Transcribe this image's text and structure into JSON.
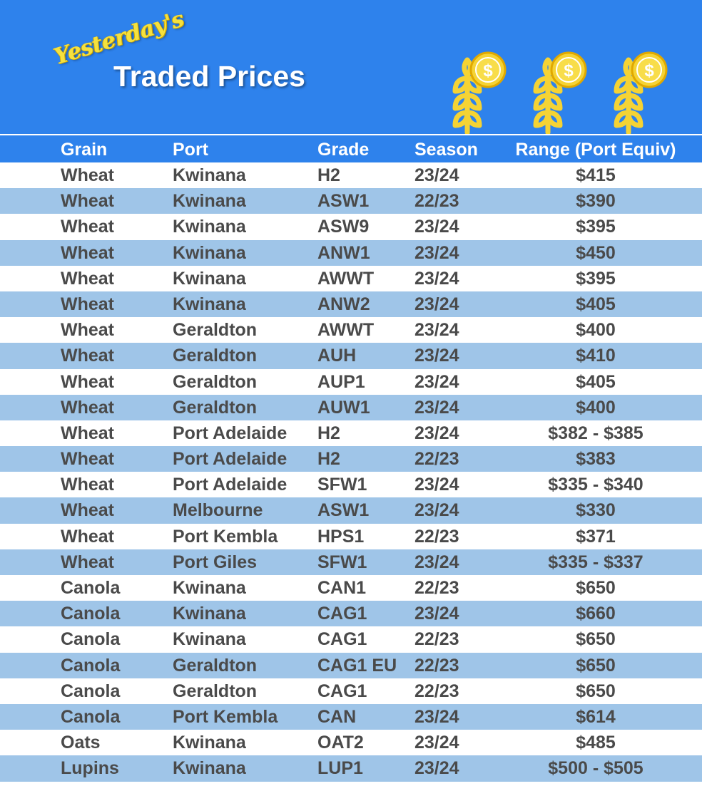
{
  "header": {
    "script_title": "Yesterday's",
    "title": "Traded Prices",
    "icons": [
      "wheat-coin-icon",
      "wheat-coin-icon",
      "wheat-coin-icon"
    ]
  },
  "colors": {
    "banner": "#2e82ec",
    "alt_row": "#9fc5e8",
    "text": "#4a4a4a",
    "accent_yellow": "#f5d334"
  },
  "table": {
    "columns": [
      "Grain",
      "Port",
      "Grade",
      "Season",
      "Range (Port Equiv)"
    ],
    "rows": [
      {
        "grain": "Wheat",
        "port": "Kwinana",
        "grade": "H2",
        "season": "23/24",
        "range": "$415"
      },
      {
        "grain": "Wheat",
        "port": "Kwinana",
        "grade": "ASW1",
        "season": "22/23",
        "range": "$390"
      },
      {
        "grain": "Wheat",
        "port": "Kwinana",
        "grade": "ASW9",
        "season": "23/24",
        "range": "$395"
      },
      {
        "grain": "Wheat",
        "port": "Kwinana",
        "grade": "ANW1",
        "season": "23/24",
        "range": "$450"
      },
      {
        "grain": "Wheat",
        "port": "Kwinana",
        "grade": "AWWT",
        "season": "23/24",
        "range": "$395"
      },
      {
        "grain": "Wheat",
        "port": "Kwinana",
        "grade": "ANW2",
        "season": "23/24",
        "range": "$405"
      },
      {
        "grain": "Wheat",
        "port": "Geraldton",
        "grade": "AWWT",
        "season": "23/24",
        "range": "$400"
      },
      {
        "grain": "Wheat",
        "port": "Geraldton",
        "grade": "AUH",
        "season": "23/24",
        "range": "$410"
      },
      {
        "grain": "Wheat",
        "port": "Geraldton",
        "grade": "AUP1",
        "season": "23/24",
        "range": "$405"
      },
      {
        "grain": "Wheat",
        "port": "Geraldton",
        "grade": "AUW1",
        "season": "23/24",
        "range": "$400"
      },
      {
        "grain": "Wheat",
        "port": "Port Adelaide",
        "grade": "H2",
        "season": "23/24",
        "range": "$382 - $385"
      },
      {
        "grain": "Wheat",
        "port": "Port Adelaide",
        "grade": "H2",
        "season": "22/23",
        "range": "$383"
      },
      {
        "grain": "Wheat",
        "port": "Port Adelaide",
        "grade": "SFW1",
        "season": "23/24",
        "range": "$335 - $340"
      },
      {
        "grain": "Wheat",
        "port": "Melbourne",
        "grade": "ASW1",
        "season": "23/24",
        "range": "$330"
      },
      {
        "grain": "Wheat",
        "port": "Port Kembla",
        "grade": "HPS1",
        "season": "22/23",
        "range": "$371"
      },
      {
        "grain": "Wheat",
        "port": "Port Giles",
        "grade": "SFW1",
        "season": "23/24",
        "range": "$335 - $337"
      },
      {
        "grain": "Canola",
        "port": "Kwinana",
        "grade": "CAN1",
        "season": "22/23",
        "range": "$650"
      },
      {
        "grain": "Canola",
        "port": "Kwinana",
        "grade": "CAG1",
        "season": "23/24",
        "range": "$660"
      },
      {
        "grain": "Canola",
        "port": "Kwinana",
        "grade": "CAG1",
        "season": "22/23",
        "range": "$650"
      },
      {
        "grain": "Canola",
        "port": "Geraldton",
        "grade": "CAG1 EU",
        "season": "22/23",
        "range": "$650"
      },
      {
        "grain": "Canola",
        "port": "Geraldton",
        "grade": "CAG1",
        "season": "22/23",
        "range": "$650"
      },
      {
        "grain": "Canola",
        "port": "Port Kembla",
        "grade": "CAN",
        "season": "23/24",
        "range": "$614"
      },
      {
        "grain": "Oats",
        "port": "Kwinana",
        "grade": "OAT2",
        "season": "23/24",
        "range": "$485"
      },
      {
        "grain": "Lupins",
        "port": "Kwinana",
        "grade": "LUP1",
        "season": "23/24",
        "range": "$500 - $505"
      }
    ]
  }
}
